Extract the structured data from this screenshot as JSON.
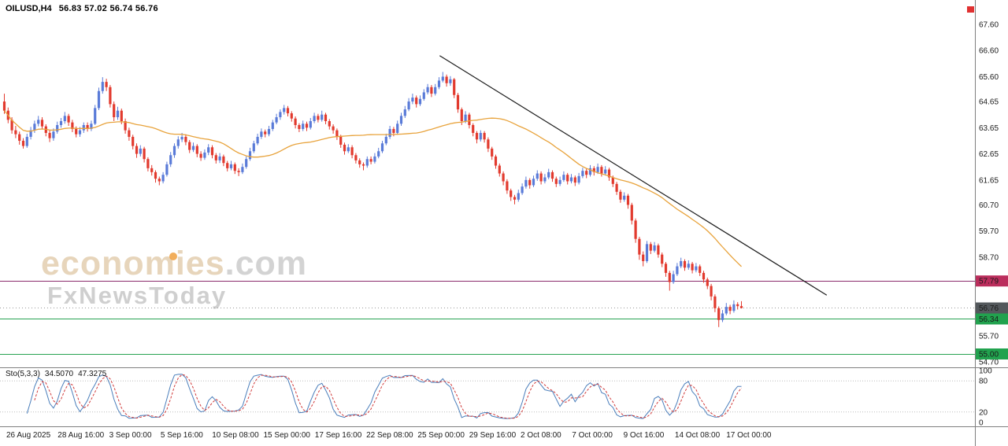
{
  "header": {
    "symbol": "OILUSD,H4",
    "ohlc": "56.83 57.02 56.74 56.76"
  },
  "watermark": {
    "brand": "economies",
    "ext": ".com",
    "tagline": "FxNewsToday"
  },
  "colors": {
    "bull": "#5a7bd8",
    "bear": "#e23a2e",
    "ma": "#e8a33c",
    "trend": "#1c1c1c",
    "level_purple": "#8b2a6b",
    "badge_purple": "#bb2d5c",
    "level_green": "#27a352",
    "badge_green": "#21a24e",
    "current_badge": "#53585c",
    "current_line": "#9a9a9a",
    "sto_main": "#4a7ebb",
    "sto_signal": "#d03a3a",
    "separator": "#808080",
    "axis_text": "#1a1a1a",
    "marker_red": "#e03131"
  },
  "chart_data": {
    "type": "candlestick",
    "symbol": "OILUSD,H4",
    "timeframe": "H4",
    "ylim": [
      54.52,
      68.53
    ],
    "grid": false,
    "price_ticks": [
      "67.60",
      "66.60",
      "65.60",
      "64.65",
      "63.65",
      "62.65",
      "61.65",
      "60.70",
      "59.70",
      "58.70",
      "55.70",
      "54.70"
    ],
    "x_labels": [
      "26 Aug 2025",
      "28 Aug 16:00",
      "3 Sep 00:00",
      "5 Sep 16:00",
      "10 Sep 08:00",
      "15 Sep 00:00",
      "17 Sep 16:00",
      "22 Sep 08:00",
      "25 Sep 00:00",
      "29 Sep 16:00",
      "2 Oct 08:00",
      "7 Oct 00:00",
      "9 Oct 16:00",
      "14 Oct 08:00",
      "17 Oct 00:00"
    ],
    "ma_period": 34,
    "levels": [
      {
        "price": "57.79",
        "line": "#8b2a6b",
        "badge": "#bb2d5c"
      },
      {
        "price": "56.34",
        "line": "#27a352",
        "badge": "#21a24e"
      },
      {
        "price": "55.00",
        "line": "#27a352",
        "badge": "#21a24e"
      }
    ],
    "current_price": {
      "price": "56.76",
      "badge": "#53585c",
      "line": "#9a9a9a"
    },
    "trendline": {
      "x1_frac": 0.451,
      "p1": 66.4,
      "x2_frac": 0.848,
      "p2": 57.25
    },
    "stochastic": {
      "label": "Sto(5,3,3)",
      "value_main": "34.5070",
      "value_signal": "47.3275",
      "k": 5,
      "slowing": 3,
      "d": 3,
      "range": [
        0,
        100
      ],
      "levels": [
        80,
        20
      ],
      "axis_labels": [
        "100",
        "80",
        "20",
        "0"
      ]
    },
    "candles": [
      [
        64.65,
        64.95,
        64.18,
        64.3
      ],
      [
        64.3,
        64.42,
        63.82,
        63.95
      ],
      [
        63.95,
        64.05,
        63.42,
        63.55
      ],
      [
        63.55,
        63.72,
        63.25,
        63.4
      ],
      [
        63.4,
        63.5,
        63.0,
        63.15
      ],
      [
        63.15,
        63.25,
        62.85,
        62.95
      ],
      [
        62.95,
        63.42,
        62.88,
        63.3
      ],
      [
        63.3,
        63.68,
        63.2,
        63.55
      ],
      [
        63.55,
        63.92,
        63.45,
        63.8
      ],
      [
        63.8,
        64.1,
        63.7,
        63.95
      ],
      [
        63.95,
        64.05,
        63.58,
        63.7
      ],
      [
        63.7,
        63.78,
        63.32,
        63.45
      ],
      [
        63.45,
        63.55,
        63.1,
        63.25
      ],
      [
        63.25,
        63.62,
        63.15,
        63.5
      ],
      [
        63.5,
        63.88,
        63.42,
        63.75
      ],
      [
        63.75,
        64.02,
        63.65,
        63.9
      ],
      [
        63.9,
        64.25,
        63.8,
        64.1
      ],
      [
        64.1,
        64.18,
        63.72,
        63.85
      ],
      [
        63.85,
        63.95,
        63.48,
        63.6
      ],
      [
        63.6,
        63.7,
        63.28,
        63.4
      ],
      [
        63.4,
        63.68,
        63.3,
        63.55
      ],
      [
        63.55,
        63.85,
        63.45,
        63.75
      ],
      [
        63.75,
        63.85,
        63.5,
        63.6
      ],
      [
        63.6,
        63.92,
        63.52,
        63.8
      ],
      [
        63.8,
        64.52,
        63.75,
        64.4
      ],
      [
        64.4,
        65.18,
        64.32,
        65.05
      ],
      [
        65.05,
        65.58,
        64.95,
        65.4
      ],
      [
        65.4,
        65.52,
        65.05,
        65.2
      ],
      [
        65.2,
        65.28,
        64.42,
        64.55
      ],
      [
        64.55,
        64.65,
        63.9,
        64.05
      ],
      [
        64.05,
        64.45,
        63.95,
        64.3
      ],
      [
        64.3,
        64.38,
        63.78,
        63.9
      ],
      [
        63.9,
        64.0,
        63.42,
        63.55
      ],
      [
        63.55,
        63.65,
        63.15,
        63.3
      ],
      [
        63.3,
        63.38,
        62.82,
        62.95
      ],
      [
        62.95,
        63.05,
        62.5,
        62.65
      ],
      [
        62.65,
        62.98,
        62.55,
        62.85
      ],
      [
        62.85,
        62.92,
        62.32,
        62.45
      ],
      [
        62.45,
        62.52,
        61.98,
        62.1
      ],
      [
        62.1,
        62.22,
        61.82,
        61.95
      ],
      [
        61.95,
        62.02,
        61.55,
        61.7
      ],
      [
        61.7,
        61.78,
        61.45,
        61.6
      ],
      [
        61.6,
        61.95,
        61.52,
        61.85
      ],
      [
        61.85,
        62.35,
        61.78,
        62.25
      ],
      [
        62.25,
        62.72,
        62.15,
        62.6
      ],
      [
        62.6,
        63.05,
        62.5,
        62.95
      ],
      [
        62.95,
        63.32,
        62.85,
        63.2
      ],
      [
        63.2,
        63.45,
        63.1,
        63.3
      ],
      [
        63.3,
        63.4,
        62.98,
        63.1
      ],
      [
        63.1,
        63.18,
        62.68,
        62.8
      ],
      [
        62.8,
        63.08,
        62.72,
        62.95
      ],
      [
        62.95,
        63.02,
        62.52,
        62.65
      ],
      [
        62.65,
        62.75,
        62.38,
        62.5
      ],
      [
        62.5,
        62.82,
        62.42,
        62.7
      ],
      [
        62.7,
        63.02,
        62.6,
        62.9
      ],
      [
        62.9,
        62.98,
        62.48,
        62.6
      ],
      [
        62.6,
        62.68,
        62.28,
        62.4
      ],
      [
        62.4,
        62.68,
        62.3,
        62.55
      ],
      [
        62.55,
        62.62,
        62.18,
        62.3
      ],
      [
        62.3,
        62.38,
        61.98,
        62.1
      ],
      [
        62.1,
        62.38,
        62.02,
        62.25
      ],
      [
        62.25,
        62.32,
        61.88,
        62.0
      ],
      [
        62.0,
        62.1,
        61.8,
        61.95
      ],
      [
        61.95,
        62.28,
        61.88,
        62.15
      ],
      [
        62.15,
        62.55,
        62.08,
        62.45
      ],
      [
        62.45,
        62.88,
        62.38,
        62.75
      ],
      [
        62.75,
        63.15,
        62.68,
        63.05
      ],
      [
        63.05,
        63.42,
        62.98,
        63.3
      ],
      [
        63.3,
        63.62,
        63.22,
        63.5
      ],
      [
        63.5,
        63.58,
        63.28,
        63.4
      ],
      [
        63.4,
        63.72,
        63.32,
        63.6
      ],
      [
        63.6,
        63.95,
        63.52,
        63.85
      ],
      [
        63.85,
        64.18,
        63.78,
        64.05
      ],
      [
        64.05,
        64.35,
        63.95,
        64.25
      ],
      [
        64.25,
        64.52,
        64.15,
        64.4
      ],
      [
        64.4,
        64.48,
        64.08,
        64.2
      ],
      [
        64.2,
        64.28,
        63.88,
        64.0
      ],
      [
        64.0,
        64.08,
        63.62,
        63.75
      ],
      [
        63.75,
        63.82,
        63.48,
        63.6
      ],
      [
        63.6,
        63.92,
        63.52,
        63.8
      ],
      [
        63.8,
        63.88,
        63.52,
        63.65
      ],
      [
        63.65,
        64.02,
        63.58,
        63.9
      ],
      [
        63.9,
        64.22,
        63.82,
        64.1
      ],
      [
        64.1,
        64.18,
        63.85,
        63.95
      ],
      [
        63.95,
        64.3,
        63.88,
        64.15
      ],
      [
        64.15,
        64.22,
        63.78,
        63.9
      ],
      [
        63.9,
        63.98,
        63.58,
        63.7
      ],
      [
        63.7,
        63.78,
        63.42,
        63.55
      ],
      [
        63.55,
        63.62,
        63.18,
        63.3
      ],
      [
        63.3,
        63.38,
        62.88,
        63.0
      ],
      [
        63.0,
        63.08,
        62.62,
        62.75
      ],
      [
        62.75,
        63.02,
        62.68,
        62.9
      ],
      [
        62.9,
        62.98,
        62.48,
        62.6
      ],
      [
        62.6,
        62.68,
        62.28,
        62.4
      ],
      [
        62.4,
        62.48,
        62.12,
        62.25
      ],
      [
        62.25,
        62.32,
        62.02,
        62.2
      ],
      [
        62.2,
        62.55,
        62.12,
        62.45
      ],
      [
        62.45,
        62.55,
        62.25,
        62.35
      ],
      [
        62.35,
        62.68,
        62.28,
        62.55
      ],
      [
        62.55,
        62.88,
        62.48,
        62.75
      ],
      [
        62.75,
        63.15,
        62.68,
        63.05
      ],
      [
        63.05,
        63.42,
        62.98,
        63.3
      ],
      [
        63.3,
        63.72,
        63.22,
        63.6
      ],
      [
        63.6,
        63.68,
        63.32,
        63.45
      ],
      [
        63.45,
        63.92,
        63.38,
        63.8
      ],
      [
        63.8,
        64.22,
        63.72,
        64.1
      ],
      [
        64.1,
        64.48,
        64.02,
        64.35
      ],
      [
        64.35,
        64.78,
        64.28,
        64.65
      ],
      [
        64.65,
        64.95,
        64.55,
        64.8
      ],
      [
        64.8,
        64.88,
        64.42,
        64.55
      ],
      [
        64.55,
        64.88,
        64.48,
        64.75
      ],
      [
        64.75,
        65.12,
        64.68,
        65.0
      ],
      [
        65.0,
        65.32,
        64.92,
        65.2
      ],
      [
        65.2,
        65.28,
        64.82,
        64.95
      ],
      [
        64.95,
        65.32,
        64.88,
        65.2
      ],
      [
        65.2,
        65.58,
        65.12,
        65.45
      ],
      [
        65.45,
        65.78,
        65.38,
        65.6
      ],
      [
        65.6,
        65.68,
        65.22,
        65.35
      ],
      [
        65.35,
        65.62,
        65.25,
        65.5
      ],
      [
        65.5,
        65.55,
        64.78,
        64.9
      ],
      [
        64.9,
        64.98,
        64.22,
        64.35
      ],
      [
        64.35,
        64.42,
        63.75,
        63.9
      ],
      [
        63.9,
        64.28,
        63.82,
        64.15
      ],
      [
        64.15,
        64.22,
        63.62,
        63.75
      ],
      [
        63.75,
        63.82,
        63.32,
        63.45
      ],
      [
        63.45,
        63.52,
        63.05,
        63.2
      ],
      [
        63.2,
        63.55,
        63.12,
        63.45
      ],
      [
        63.45,
        63.52,
        63.08,
        63.2
      ],
      [
        63.2,
        63.28,
        62.72,
        62.85
      ],
      [
        62.85,
        62.92,
        62.42,
        62.55
      ],
      [
        62.55,
        62.62,
        62.08,
        62.2
      ],
      [
        62.2,
        62.28,
        61.78,
        61.9
      ],
      [
        61.9,
        61.98,
        61.45,
        61.6
      ],
      [
        61.6,
        61.68,
        61.12,
        61.25
      ],
      [
        61.25,
        61.32,
        60.85,
        61.0
      ],
      [
        61.0,
        61.08,
        60.72,
        60.9
      ],
      [
        60.9,
        61.28,
        60.82,
        61.15
      ],
      [
        61.15,
        61.52,
        61.08,
        61.4
      ],
      [
        61.4,
        61.78,
        61.32,
        61.65
      ],
      [
        61.65,
        61.72,
        61.32,
        61.45
      ],
      [
        61.45,
        61.82,
        61.38,
        61.7
      ],
      [
        61.7,
        62.02,
        61.62,
        61.9
      ],
      [
        61.9,
        61.98,
        61.48,
        61.6
      ],
      [
        61.6,
        61.88,
        61.52,
        61.75
      ],
      [
        61.75,
        62.08,
        61.68,
        61.95
      ],
      [
        61.95,
        62.02,
        61.58,
        61.7
      ],
      [
        61.7,
        61.78,
        61.38,
        61.5
      ],
      [
        61.5,
        61.78,
        61.42,
        61.65
      ],
      [
        61.65,
        61.98,
        61.58,
        61.85
      ],
      [
        61.85,
        61.92,
        61.48,
        61.6
      ],
      [
        61.6,
        61.88,
        61.52,
        61.75
      ],
      [
        61.75,
        61.82,
        61.42,
        61.55
      ],
      [
        61.55,
        61.92,
        61.48,
        61.8
      ],
      [
        61.8,
        62.12,
        61.72,
        62.0
      ],
      [
        62.0,
        62.08,
        61.72,
        61.85
      ],
      [
        61.85,
        62.22,
        61.78,
        62.1
      ],
      [
        62.1,
        62.18,
        61.82,
        61.95
      ],
      [
        61.95,
        62.28,
        61.88,
        62.15
      ],
      [
        62.15,
        62.22,
        61.78,
        61.9
      ],
      [
        61.9,
        62.18,
        61.82,
        62.05
      ],
      [
        62.05,
        62.12,
        61.62,
        61.75
      ],
      [
        61.75,
        61.82,
        61.38,
        61.5
      ],
      [
        61.5,
        61.58,
        61.08,
        61.2
      ],
      [
        61.2,
        61.28,
        60.78,
        60.9
      ],
      [
        60.9,
        61.18,
        60.82,
        61.05
      ],
      [
        61.05,
        61.12,
        60.55,
        60.7
      ],
      [
        60.7,
        60.78,
        59.95,
        60.1
      ],
      [
        60.1,
        60.18,
        59.25,
        59.4
      ],
      [
        59.4,
        59.48,
        58.6,
        58.8
      ],
      [
        58.8,
        58.92,
        58.35,
        58.55
      ],
      [
        58.55,
        59.32,
        58.48,
        59.2
      ],
      [
        59.2,
        59.28,
        58.82,
        58.95
      ],
      [
        58.95,
        59.28,
        58.88,
        59.15
      ],
      [
        59.15,
        59.22,
        58.68,
        58.8
      ],
      [
        58.8,
        58.88,
        58.32,
        58.45
      ],
      [
        58.45,
        58.52,
        57.95,
        58.1
      ],
      [
        58.1,
        58.18,
        57.42,
        57.75
      ],
      [
        57.75,
        58.18,
        57.68,
        58.05
      ],
      [
        58.05,
        58.48,
        57.98,
        58.35
      ],
      [
        58.35,
        58.68,
        58.28,
        58.55
      ],
      [
        58.55,
        58.62,
        58.18,
        58.3
      ],
      [
        58.3,
        58.58,
        58.22,
        58.45
      ],
      [
        58.45,
        58.52,
        58.08,
        58.2
      ],
      [
        58.2,
        58.48,
        58.12,
        58.35
      ],
      [
        58.35,
        58.42,
        57.98,
        58.1
      ],
      [
        58.1,
        58.18,
        57.72,
        57.85
      ],
      [
        57.85,
        57.92,
        57.48,
        57.6
      ],
      [
        57.6,
        57.68,
        57.05,
        57.2
      ],
      [
        57.2,
        57.28,
        56.6,
        56.75
      ],
      [
        56.75,
        56.82,
        56.03,
        56.3
      ],
      [
        56.3,
        56.68,
        56.22,
        56.55
      ],
      [
        56.55,
        56.95,
        56.48,
        56.8
      ],
      [
        56.8,
        56.88,
        56.52,
        56.65
      ],
      [
        56.65,
        57.05,
        56.58,
        56.9
      ],
      [
        56.9,
        56.98,
        56.7,
        56.83
      ],
      [
        56.83,
        57.02,
        56.74,
        56.76
      ]
    ]
  }
}
